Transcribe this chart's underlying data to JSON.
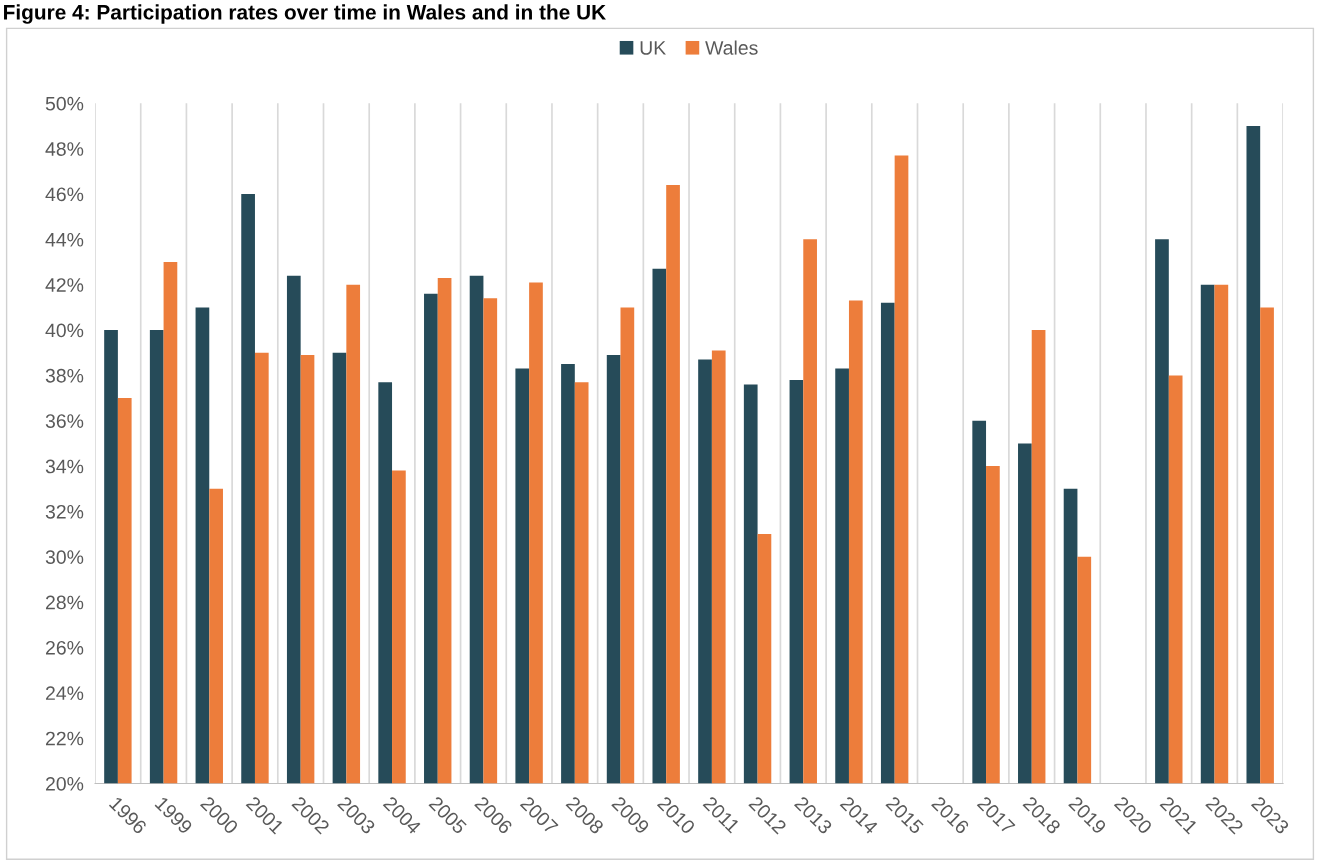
{
  "chart_data": {
    "type": "bar",
    "title": "Figure 4: Participation rates over time in Wales and in the UK",
    "categories": [
      "1996",
      "1999",
      "2000",
      "2001",
      "2002",
      "2003",
      "2004",
      "2005",
      "2006",
      "2007",
      "2008",
      "2009",
      "2010",
      "2011",
      "2012",
      "2013",
      "2014",
      "2015",
      "2016",
      "2017",
      "2018",
      "2019",
      "2020",
      "2021",
      "2022",
      "2023"
    ],
    "series": [
      {
        "name": "UK",
        "color": "#264b59",
        "values": [
          40.0,
          40.0,
          41.0,
          46.0,
          42.4,
          39.0,
          37.7,
          41.6,
          42.4,
          38.3,
          38.5,
          38.9,
          42.7,
          38.7,
          37.6,
          37.8,
          38.3,
          41.2,
          null,
          36.0,
          35.0,
          33.0,
          null,
          44.0,
          42.0,
          49.0
        ]
      },
      {
        "name": "Wales",
        "color": "#ed7d3b",
        "values": [
          37.0,
          43.0,
          33.0,
          39.0,
          38.9,
          42.0,
          33.8,
          42.3,
          41.4,
          42.1,
          37.7,
          41.0,
          46.4,
          39.1,
          31.0,
          44.0,
          41.3,
          47.7,
          null,
          34.0,
          40.0,
          30.0,
          null,
          38.0,
          42.0,
          41.0
        ]
      }
    ],
    "ylim": [
      20,
      50
    ],
    "yticks": [
      {
        "value": 20,
        "label": "20%"
      },
      {
        "value": 22,
        "label": "22%"
      },
      {
        "value": 24,
        "label": "24%"
      },
      {
        "value": 26,
        "label": "26%"
      },
      {
        "value": 28,
        "label": "28%"
      },
      {
        "value": 30,
        "label": "30%"
      },
      {
        "value": 32,
        "label": "32%"
      },
      {
        "value": 34,
        "label": "34%"
      },
      {
        "value": 36,
        "label": "36%"
      },
      {
        "value": 38,
        "label": "38%"
      },
      {
        "value": 40,
        "label": "40%"
      },
      {
        "value": 42,
        "label": "42%"
      },
      {
        "value": 44,
        "label": "44%"
      },
      {
        "value": 46,
        "label": "46%"
      },
      {
        "value": 48,
        "label": "48%"
      },
      {
        "value": 50,
        "label": "50%"
      }
    ],
    "grid": "x",
    "legend": "top"
  }
}
